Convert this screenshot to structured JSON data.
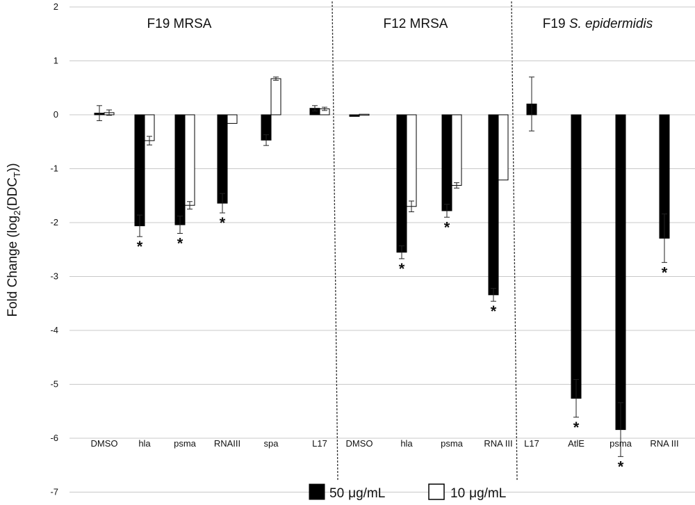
{
  "chart_data": {
    "type": "bar",
    "ylabel": {
      "prefix": "Fold Change (log",
      "sub2": "2",
      "mid": "(DDC",
      "subT": "T",
      "suffix": "))"
    },
    "ylim": [
      -7,
      2
    ],
    "yticks": [
      "2",
      "1",
      "0",
      "-1",
      "-2",
      "-3",
      "-4",
      "-5",
      "-6",
      "-7"
    ],
    "grid": true,
    "legend_position": "bottom",
    "series": [
      {
        "name": "50 μg/mL",
        "label_num": "50",
        "label_unit": "μg/mL",
        "color": "#000000"
      },
      {
        "name": "10 μg/mL",
        "label_num": "10",
        "label_unit": "μg/mL",
        "color": "#ffffff"
      }
    ],
    "groups": [
      {
        "title_plain": "F19 MRSA",
        "title_italic": "",
        "categories": [
          {
            "label": "DMSO",
            "v50": 0.03,
            "e50": 0.14,
            "v10": 0.04,
            "e10": 0.05,
            "sig50": false
          },
          {
            "label": "hla",
            "v50": -2.06,
            "e50": 0.2,
            "v10": -0.48,
            "e10": 0.08,
            "sig50": true
          },
          {
            "label": "psma",
            "v50": -2.04,
            "e50": 0.16,
            "v10": -1.68,
            "e10": 0.07,
            "sig50": true
          },
          {
            "label": "RNAIII",
            "v50": -1.64,
            "e50": 0.18,
            "v10": -0.16,
            "e10": 0.0,
            "sig50": true
          },
          {
            "label": "spa",
            "v50": -0.47,
            "e50": 0.1,
            "v10": 0.67,
            "e10": 0.03,
            "sig50": false
          },
          {
            "label": "L17",
            "v50": 0.12,
            "e50": 0.05,
            "v10": 0.11,
            "e10": 0.03,
            "sig50": false
          }
        ]
      },
      {
        "title_plain": "F12 MRSA",
        "title_italic": "",
        "categories": [
          {
            "label": "DMSO",
            "v50": -0.03,
            "e50": 0.0,
            "v10": 0.01,
            "e10": 0.0,
            "sig50": false
          },
          {
            "label": "hla",
            "v50": -2.55,
            "e50": 0.12,
            "v10": -1.7,
            "e10": 0.1,
            "sig50": true
          },
          {
            "label": "psma",
            "v50": -1.78,
            "e50": 0.12,
            "v10": -1.31,
            "e10": 0.05,
            "sig50": true
          },
          {
            "label": "RNA III",
            "v50": -3.34,
            "e50": 0.12,
            "v10": -1.21,
            "e10": 0.0,
            "sig50": true
          }
        ]
      },
      {
        "title_plain": "F19 ",
        "title_italic": "S. epidermidis",
        "categories": [
          {
            "label": "L17",
            "v50": 0.2,
            "e50": 0.5,
            "v10": null,
            "e10": null,
            "sig50": false
          },
          {
            "label": "AtlE",
            "v50": -5.26,
            "e50": 0.35,
            "v10": null,
            "e10": null,
            "sig50": true
          },
          {
            "label": "psma",
            "v50": -5.84,
            "e50": 0.5,
            "v10": null,
            "e10": null,
            "sig50": true
          },
          {
            "label": "RNA III",
            "v50": -2.29,
            "e50": 0.45,
            "v10": null,
            "e10": null,
            "sig50": true
          }
        ]
      }
    ],
    "significance_marker": "*"
  }
}
